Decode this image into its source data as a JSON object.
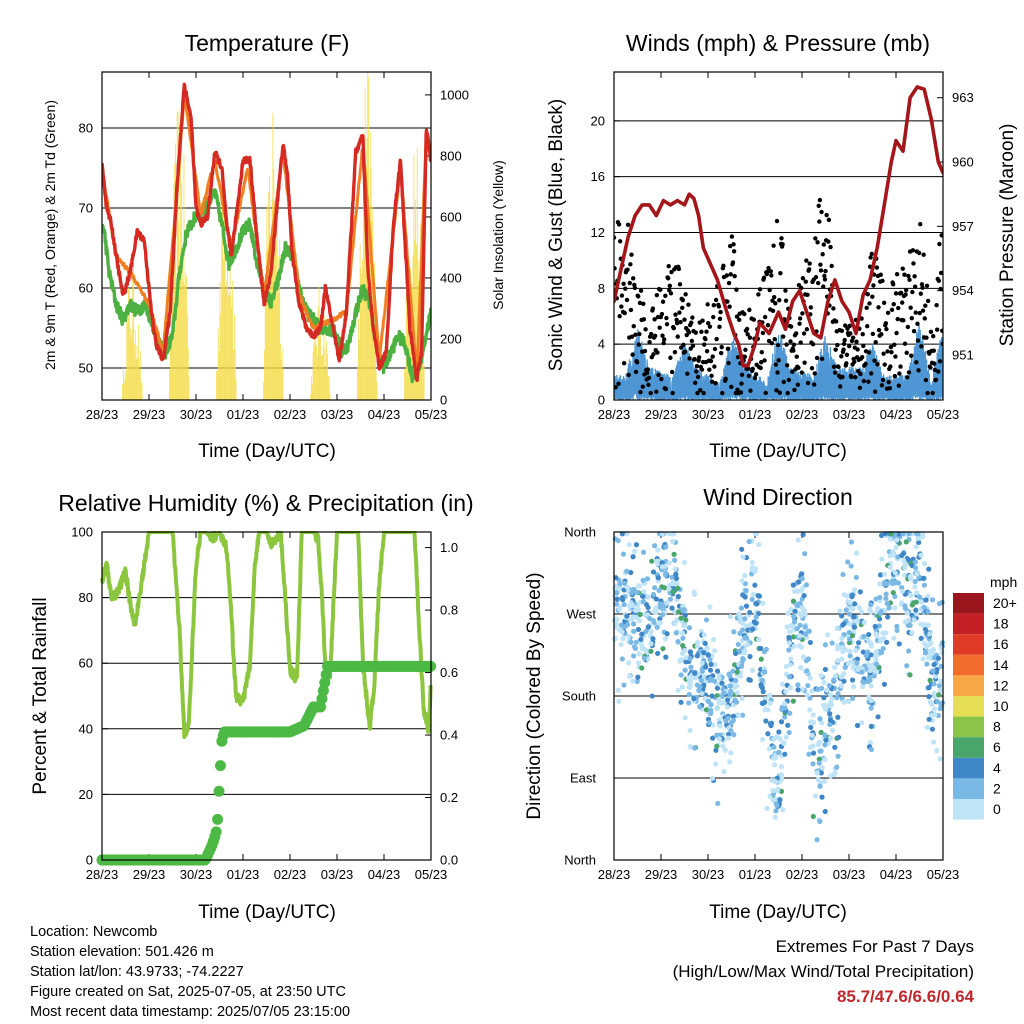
{
  "charts": {
    "temperature": {
      "title": "Temperature (F)",
      "ylabel_left": "2m & 9m T (Red, Orange) & 2m Td (Green)",
      "ylabel_right": "Solar Insolation (Yellow)",
      "xlabel": "Time (Day/UTC)"
    },
    "winds": {
      "title": "Winds (mph) & Pressure (mb)",
      "ylabel_left": "Sonic Wind & Gust (Blue, Black)",
      "ylabel_right": "Station Pressure (Maroon)",
      "xlabel": "Time (Day/UTC)"
    },
    "humidity": {
      "title": "Relative Humidity (%) & Precipitation (in)",
      "ylabel_left": "Percent & Total Rainfall",
      "xlabel": "Time (Day/UTC)"
    },
    "direction": {
      "title": "Wind Direction",
      "ylabel_left": "Direction (Colored By Speed)",
      "xlabel": "Time (Day/UTC)"
    }
  },
  "legend": {
    "title": "mph",
    "labels": [
      "20+",
      "18",
      "16",
      "14",
      "12",
      "10",
      "8",
      "6",
      "4",
      "2",
      "0"
    ],
    "colors": [
      "#99161d",
      "#c41f25",
      "#e03b28",
      "#f26d2d",
      "#f9a847",
      "#e6df55",
      "#8cc34b",
      "#4aa56b",
      "#3f87c6",
      "#7ab9e6",
      "#bfe3f7"
    ]
  },
  "info": {
    "location": "Location: Newcomb",
    "elevation": "Station elevation: 501.426 m",
    "latlon": "Station lat/lon: 43.9733; -74.2227",
    "created": "Figure created on Sat, 2025-07-05, at 23:50 UTC",
    "recent": "Most recent data timestamp: 2025/07/05 23:15:00"
  },
  "extremes": {
    "title": "Extremes For Past 7 Days",
    "subtitle": "(High/Low/Max Wind/Total Precipitation)",
    "values": "85.7/47.6/6.6/0.64"
  },
  "colors": {
    "temp_2m": "#d42a22",
    "temp_9m": "#f07f23",
    "dewpoint": "#4cb140",
    "solar": "#f5dc45",
    "gust": "#000000",
    "wind": "#4f97d4",
    "pressure": "#a4161a",
    "rh": "#8cc63f",
    "precip": "#4cb944"
  },
  "chart_data": [
    {
      "type": "line",
      "title": "Temperature (F)",
      "xlabel": "Time (Day/UTC)",
      "ylabel": "2m & 9m T (Red, Orange) & 2m Td (Green)",
      "y2label": "Solar Insolation (Yellow)",
      "x_ticks": [
        "28/23",
        "29/23",
        "30/23",
        "01/23",
        "02/23",
        "03/23",
        "04/23",
        "05/23"
      ],
      "x_unit": "days since 28/23",
      "ylim": [
        46,
        87
      ],
      "yticks": [
        50,
        60,
        70,
        80
      ],
      "y2lim": [
        0,
        1075
      ],
      "y2ticks": [
        0,
        200,
        400,
        600,
        800,
        1000
      ],
      "series": [
        {
          "name": "2m T",
          "x": [
            0,
            0.1,
            0.2,
            0.3,
            0.45,
            0.6,
            0.75,
            0.9,
            1.05,
            1.15,
            1.3,
            1.45,
            1.6,
            1.75,
            1.9,
            2.0,
            2.1,
            2.25,
            2.4,
            2.55,
            2.65,
            2.75,
            2.9,
            3.0,
            3.15,
            3.3,
            3.45,
            3.6,
            3.75,
            3.85,
            3.95,
            4.05,
            4.2,
            4.35,
            4.5,
            4.65,
            4.75,
            4.9,
            5.05,
            5.2,
            5.4,
            5.55,
            5.65,
            5.75,
            5.9,
            6.05,
            6.2,
            6.35,
            6.55,
            6.7,
            6.8,
            6.9,
            7.0
          ],
          "values": [
            75.5,
            70,
            68,
            64,
            59,
            62,
            67,
            66,
            57,
            53,
            51,
            57,
            73,
            85.5,
            81,
            70,
            68,
            69,
            77,
            75,
            68,
            64,
            71,
            76,
            76,
            66,
            58,
            62,
            72,
            78,
            74,
            64,
            58,
            55,
            54,
            55,
            60,
            55.5,
            51,
            57,
            77,
            79,
            63,
            56,
            50,
            52,
            68,
            76,
            55,
            48.5,
            52,
            80,
            76
          ]
        },
        {
          "name": "9m T",
          "x": [
            0,
            0.3,
            0.6,
            1.0,
            1.3,
            1.6,
            1.75,
            2.1,
            2.4,
            2.75,
            3.1,
            3.45,
            3.85,
            4.2,
            4.5,
            4.9,
            5.2,
            5.55,
            5.9,
            6.35,
            6.7,
            6.9,
            7.0
          ],
          "values": [
            75,
            64,
            62,
            58,
            52,
            72,
            84.5,
            69,
            76,
            65,
            75,
            59,
            77,
            59,
            55,
            56,
            57,
            78,
            51,
            75,
            49,
            79,
            76
          ]
        },
        {
          "name": "2m Td",
          "x": [
            0,
            0.05,
            0.15,
            0.3,
            0.45,
            0.6,
            0.75,
            0.9,
            1.05,
            1.2,
            1.35,
            1.5,
            1.65,
            1.8,
            2.0,
            2.2,
            2.4,
            2.55,
            2.7,
            2.85,
            3.0,
            3.15,
            3.3,
            3.45,
            3.6,
            3.75,
            3.9,
            4.05,
            4.2,
            4.35,
            4.5,
            4.65,
            4.8,
            4.95,
            5.1,
            5.25,
            5.4,
            5.55,
            5.7,
            5.85,
            6.0,
            6.15,
            6.3,
            6.45,
            6.6,
            6.75,
            6.85,
            7.0
          ],
          "values": [
            68,
            67,
            62,
            58,
            56,
            58,
            57,
            58,
            56,
            53,
            52,
            54,
            62,
            67,
            69,
            70,
            72,
            68,
            63,
            65,
            67,
            68,
            63,
            60,
            58,
            61,
            65,
            64,
            60,
            57,
            56,
            55,
            55,
            54.5,
            52,
            53,
            57,
            60,
            58,
            53,
            50,
            52,
            54,
            53,
            49,
            50,
            53,
            57
          ]
        },
        {
          "name": "Solar Insolation",
          "x": [
            0.45,
            0.55,
            0.65,
            0.75,
            0.85,
            1.45,
            1.55,
            1.65,
            1.75,
            1.85,
            2.45,
            2.55,
            2.65,
            2.75,
            2.85,
            3.45,
            3.55,
            3.65,
            3.75,
            3.85,
            4.45,
            4.55,
            4.65,
            4.75,
            4.85,
            5.45,
            5.55,
            5.65,
            5.75,
            5.85,
            6.45,
            6.55,
            6.65,
            6.75,
            6.85
          ],
          "values": [
            0,
            350,
            420,
            380,
            0,
            0,
            650,
            950,
            900,
            0,
            0,
            700,
            850,
            600,
            0,
            0,
            600,
            1000,
            800,
            0,
            0,
            250,
            350,
            200,
            0,
            0,
            750,
            1050,
            700,
            0,
            0,
            600,
            900,
            700,
            0
          ]
        }
      ]
    },
    {
      "type": "scatter",
      "title": "Winds (mph) & Pressure (mb)",
      "xlabel": "Time (Day/UTC)",
      "ylabel": "Sonic Wind & Gust (Blue, Black)",
      "y2label": "Station Pressure (Maroon)",
      "x_ticks": [
        "28/23",
        "29/23",
        "30/23",
        "01/23",
        "02/23",
        "03/23",
        "04/23",
        "05/23"
      ],
      "x_unit": "days since 28/23",
      "ylim": [
        0,
        23.5
      ],
      "yticks": [
        0,
        4,
        8,
        12,
        16,
        20
      ],
      "y2lim": [
        948.9,
        964.2
      ],
      "y2ticks": [
        951,
        954,
        957,
        960,
        963
      ],
      "series": [
        {
          "name": "Wind",
          "x": [
            0.25,
            0.5,
            0.75,
            1.25,
            1.5,
            1.75,
            2.25,
            2.5,
            2.75,
            3.25,
            3.5,
            3.75,
            4.25,
            4.5,
            4.75,
            5.25,
            5.5,
            5.75,
            6.25,
            6.5,
            6.75,
            6.95
          ],
          "values": [
            1.5,
            4.5,
            2,
            1.5,
            3.5,
            2,
            1,
            4,
            2.5,
            1,
            4.5,
            2,
            1.5,
            4,
            2,
            2,
            3.5,
            1.5,
            1.5,
            5,
            1,
            4
          ]
        },
        {
          "name": "Gust",
          "x": [
            0.25,
            0.5,
            0.75,
            1.25,
            1.5,
            1.75,
            2.25,
            2.5,
            2.75,
            3.25,
            3.5,
            3.75,
            4.25,
            4.5,
            4.75,
            5.25,
            5.5,
            5.75,
            6.25,
            6.5,
            6.75,
            6.95
          ],
          "values": [
            14,
            9,
            6,
            11,
            8,
            5,
            9,
            13,
            6,
            10,
            14,
            6,
            12,
            17,
            5,
            6,
            12,
            8,
            10,
            14,
            5,
            13
          ]
        },
        {
          "name": "Station Pressure",
          "x": [
            0,
            0.15,
            0.3,
            0.45,
            0.6,
            0.75,
            0.9,
            1.05,
            1.2,
            1.35,
            1.5,
            1.6,
            1.7,
            1.8,
            1.9,
            2.0,
            2.2,
            2.4,
            2.55,
            2.65,
            2.75,
            2.85,
            3.0,
            3.1,
            3.3,
            3.5,
            3.65,
            3.8,
            3.95,
            4.1,
            4.25,
            4.4,
            4.55,
            4.7,
            4.85,
            5.0,
            5.15,
            5.3,
            5.45,
            5.6,
            5.75,
            5.9,
            6.0,
            6.15,
            6.3,
            6.45,
            6.6,
            6.75,
            6.9,
            7.0
          ],
          "values": [
            953.5,
            955,
            956.5,
            957.5,
            958,
            958,
            957.5,
            958.2,
            958,
            958.2,
            958,
            958.5,
            958.3,
            957.5,
            956,
            955.5,
            954.5,
            953,
            952,
            951.5,
            950.5,
            950.5,
            951.5,
            952.5,
            952,
            953,
            952.2,
            953.5,
            954,
            953,
            952,
            951.8,
            953.5,
            954.5,
            953.5,
            953,
            952,
            953.8,
            954.5,
            956,
            958,
            960,
            961,
            960.5,
            963,
            963.5,
            963.4,
            962,
            960,
            959.5
          ]
        }
      ]
    },
    {
      "type": "line",
      "title": "Relative Humidity (%) & Precipitation (in)",
      "xlabel": "Time (Day/UTC)",
      "ylabel": "Percent & Total Rainfall",
      "x_ticks": [
        "28/23",
        "29/23",
        "30/23",
        "01/23",
        "02/23",
        "03/23",
        "04/23",
        "05/23"
      ],
      "x_unit": "days since 28/23",
      "ylim": [
        0,
        100
      ],
      "yticks": [
        0,
        20,
        40,
        60,
        80,
        100
      ],
      "y2lim": [
        0,
        1.05
      ],
      "y2ticks": [
        0.0,
        0.2,
        0.4,
        0.6,
        0.8,
        1.0
      ],
      "series": [
        {
          "name": "Relative Humidity",
          "x": [
            0,
            0.1,
            0.2,
            0.35,
            0.5,
            0.6,
            0.7,
            0.8,
            0.9,
            1.0,
            1.1,
            1.2,
            1.3,
            1.35,
            1.5,
            1.65,
            1.75,
            1.85,
            2.0,
            2.1,
            2.2,
            2.35,
            2.5,
            2.65,
            2.75,
            2.85,
            3.0,
            3.15,
            3.25,
            3.35,
            3.5,
            3.6,
            3.7,
            3.8,
            3.9,
            4.0,
            4.15,
            4.25,
            4.35,
            4.5,
            4.6,
            4.7,
            4.75,
            4.85,
            5.0,
            5.15,
            5.25,
            5.35,
            5.45,
            5.55,
            5.7,
            5.8,
            5.9,
            6.0,
            6.15,
            6.25,
            6.35,
            6.45,
            6.55,
            6.65,
            6.75,
            6.85,
            6.95,
            7.0
          ],
          "values": [
            85,
            90,
            80,
            82,
            88,
            78,
            72,
            80,
            90,
            100,
            100,
            100,
            100,
            100,
            100,
            70,
            38,
            42,
            90,
            100,
            100,
            98,
            100,
            95,
            75,
            50,
            48,
            60,
            90,
            100,
            100,
            96,
            98,
            100,
            80,
            58,
            55,
            100,
            100,
            100,
            98,
            75,
            60,
            55,
            100,
            100,
            100,
            100,
            100,
            60,
            40,
            55,
            85,
            100,
            100,
            100,
            100,
            100,
            100,
            100,
            70,
            45,
            40,
            55
          ]
        },
        {
          "name": "Total Precipitation",
          "x": [
            0,
            2.2,
            2.35,
            2.45,
            2.5,
            2.55,
            2.6,
            3.0,
            4.0,
            4.3,
            4.5,
            4.65,
            4.8,
            5.0,
            6.0,
            7.0
          ],
          "values": [
            0.0,
            0.0,
            0.05,
            0.1,
            0.25,
            0.38,
            0.41,
            0.41,
            0.41,
            0.43,
            0.49,
            0.49,
            0.62,
            0.62,
            0.62,
            0.62
          ]
        }
      ]
    },
    {
      "type": "scatter",
      "title": "Wind Direction",
      "xlabel": "Time (Day/UTC)",
      "ylabel": "Direction (Colored By Speed)",
      "x_ticks": [
        "28/23",
        "29/23",
        "30/23",
        "01/23",
        "02/23",
        "03/23",
        "04/23",
        "05/23"
      ],
      "x_unit": "days since 28/23",
      "y_ticks": [
        "North",
        "East",
        "South",
        "West",
        "North"
      ],
      "ylim": [
        0,
        360
      ],
      "series": [
        {
          "name": "Direction",
          "x": [
            0.1,
            0.3,
            0.5,
            0.7,
            0.9,
            1.2,
            1.5,
            1.7,
            1.9,
            2.2,
            2.5,
            2.8,
            3.0,
            3.3,
            3.5,
            3.8,
            4.0,
            4.3,
            4.5,
            4.8,
            5.0,
            5.3,
            5.5,
            5.8,
            6.0,
            6.3,
            6.5,
            6.8,
            7.0
          ],
          "values": [
            270,
            280,
            265,
            250,
            290,
            320,
            240,
            200,
            210,
            150,
            180,
            270,
            300,
            120,
            90,
            250,
            280,
            100,
            150,
            200,
            260,
            230,
            200,
            300,
            340,
            280,
            320,
            180,
            210
          ]
        }
      ]
    }
  ]
}
